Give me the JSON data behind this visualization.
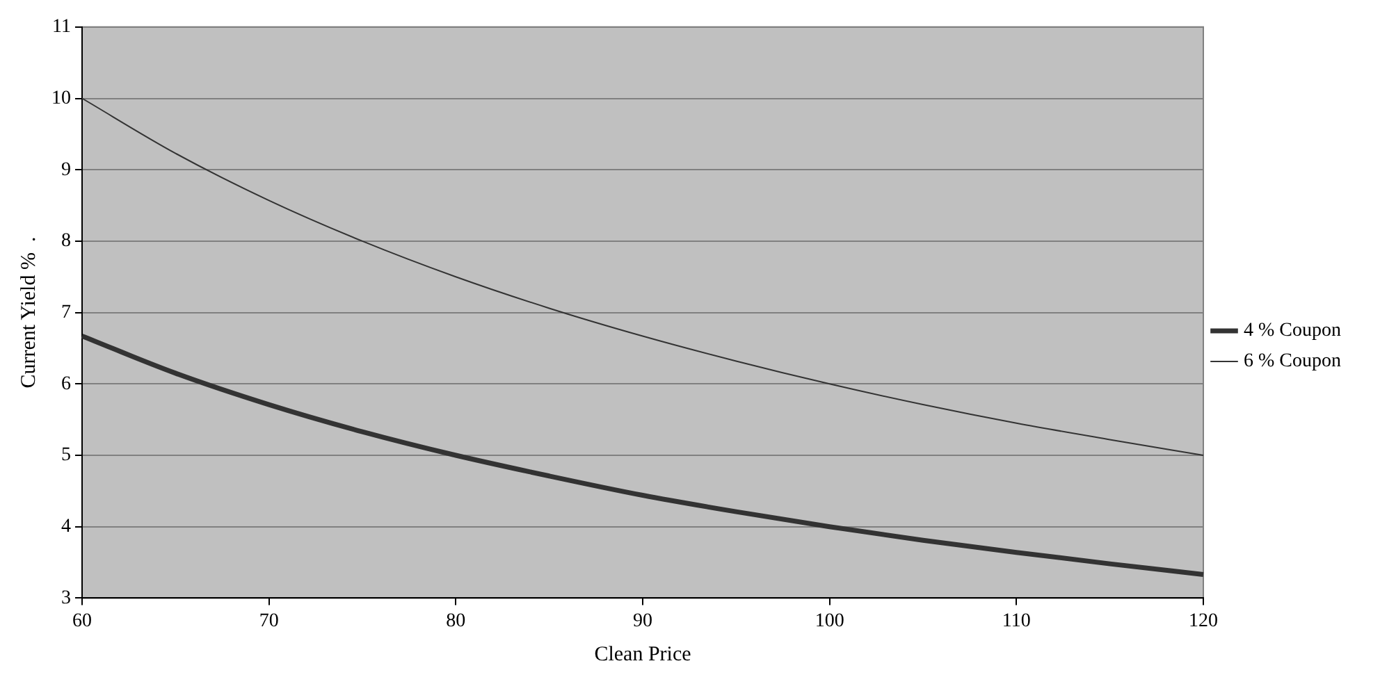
{
  "chart_data": {
    "type": "line",
    "xlabel": "Clean Price",
    "ylabel": "Current Yield %  .",
    "x": [
      60,
      65,
      70,
      75,
      80,
      85,
      90,
      95,
      100,
      105,
      110,
      115,
      120
    ],
    "series": [
      {
        "name": "4 % Coupon",
        "color": "#333333",
        "values": [
          6.67,
          6.15,
          5.71,
          5.33,
          5.0,
          4.71,
          4.44,
          4.21,
          4.0,
          3.81,
          3.64,
          3.48,
          3.33
        ]
      },
      {
        "name": "6 % Coupon",
        "color": "#333333",
        "values": [
          10.0,
          9.23,
          8.57,
          8.0,
          7.5,
          7.06,
          6.67,
          6.32,
          6.0,
          5.71,
          5.45,
          5.22,
          5.0
        ]
      }
    ],
    "xlim": [
      60,
      120
    ],
    "xticks": [
      60,
      70,
      80,
      90,
      100,
      110,
      120
    ],
    "ylim": [
      3,
      11
    ],
    "yticks": [
      3,
      4,
      5,
      6,
      7,
      8,
      9,
      10,
      11
    ],
    "grid": "y",
    "legend": "right",
    "marker": "none"
  }
}
